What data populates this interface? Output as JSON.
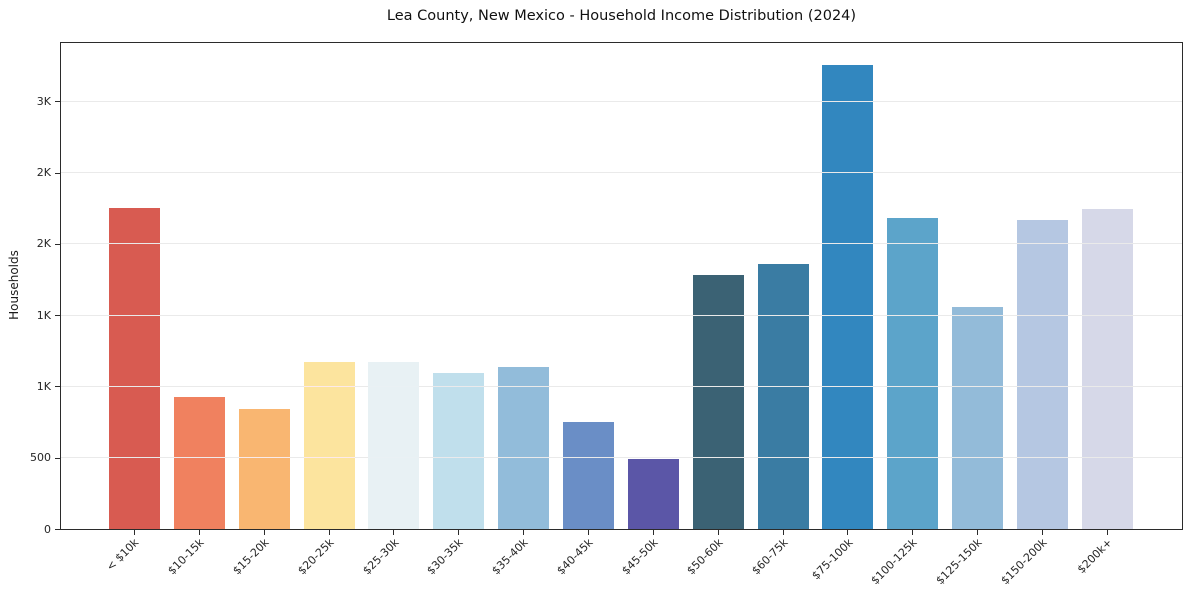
{
  "chart_data": {
    "type": "bar",
    "title": "Lea County, New Mexico - Household Income Distribution (2024)",
    "ylabel": "Households",
    "xlabel": "",
    "categories": [
      "< $10k",
      "$10-15k",
      "$15-20k",
      "$20-25k",
      "$25-30k",
      "$30-35k",
      "$35-40k",
      "$40-45k",
      "$45-50k",
      "$50-60k",
      "$60-75k",
      "$75-100k",
      "$100-125k",
      "$125-150k",
      "$150-200k",
      "$200k+"
    ],
    "values": [
      2250,
      920,
      840,
      1165,
      1170,
      1090,
      1130,
      745,
      490,
      1780,
      1855,
      3250,
      2180,
      1550,
      2165,
      2240
    ],
    "bar_colors": [
      "#d85b51",
      "#f0815f",
      "#f9b671",
      "#fce49e",
      "#e8f1f4",
      "#c0dfec",
      "#92bcda",
      "#6a8ec6",
      "#5b56a7",
      "#3b6274",
      "#3a7ca3",
      "#3287bf",
      "#5ca4ca",
      "#93bbd9",
      "#b5c7e2",
      "#d6d8e8"
    ],
    "yticks": {
      "values": [
        0,
        500,
        1000,
        1500,
        2000,
        2500,
        3000
      ],
      "labels": [
        "0",
        "500",
        "1K",
        "1K",
        "2K",
        "2K",
        "3K"
      ]
    },
    "ylim": [
      0,
      3418
    ],
    "grid": "horizontal",
    "legend": "none",
    "background_color": "#ffffff",
    "frame_color": "#2b2b2b",
    "grid_color": "#e8e8e8",
    "text_color": "#262626"
  }
}
